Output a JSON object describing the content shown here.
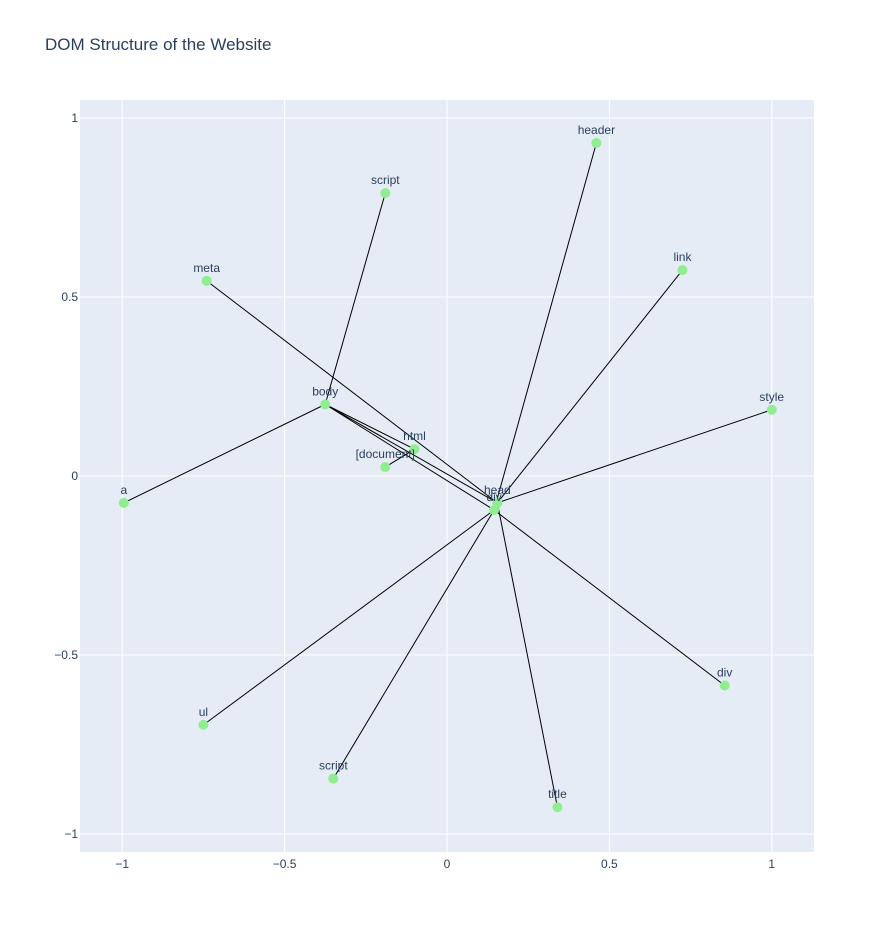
{
  "chart_data": {
    "type": "scatter",
    "title": "DOM Structure of the Website",
    "xlabel": "",
    "ylabel": "",
    "xlim": [
      -1.13,
      1.13
    ],
    "ylim": [
      -1.05,
      1.05
    ],
    "grid": true,
    "x_ticks": [
      {
        "value": -1,
        "label": "−1"
      },
      {
        "value": -0.5,
        "label": "−0.5"
      },
      {
        "value": 0,
        "label": "0"
      },
      {
        "value": 0.5,
        "label": "0.5"
      },
      {
        "value": 1,
        "label": "1"
      }
    ],
    "y_ticks": [
      {
        "value": 1,
        "label": "1"
      },
      {
        "value": 0.5,
        "label": "0.5"
      },
      {
        "value": 0,
        "label": "0"
      },
      {
        "value": -0.5,
        "label": "−0.5"
      },
      {
        "value": -1,
        "label": "−1"
      }
    ],
    "colors": {
      "plot_bg": "#e5ecf6",
      "grid": "#ffffff",
      "node": "#90ee90",
      "edge": "#000000",
      "text": "#2a3f5f"
    },
    "nodes": [
      {
        "id": "document",
        "label": "[document]",
        "x": -0.19,
        "y": 0.025
      },
      {
        "id": "html",
        "label": "html",
        "x": -0.1,
        "y": 0.075
      },
      {
        "id": "head",
        "label": "head",
        "x": 0.155,
        "y": -0.075
      },
      {
        "id": "div_center",
        "label": "div",
        "x": 0.145,
        "y": -0.095
      },
      {
        "id": "body",
        "label": "body",
        "x": -0.375,
        "y": 0.2
      },
      {
        "id": "script_top",
        "label": "script",
        "x": -0.19,
        "y": 0.79
      },
      {
        "id": "header",
        "label": "header",
        "x": 0.46,
        "y": 0.93
      },
      {
        "id": "meta",
        "label": "meta",
        "x": -0.74,
        "y": 0.545
      },
      {
        "id": "link",
        "label": "link",
        "x": 0.725,
        "y": 0.575
      },
      {
        "id": "style",
        "label": "style",
        "x": 1.0,
        "y": 0.185
      },
      {
        "id": "a",
        "label": "a",
        "x": -0.995,
        "y": -0.075
      },
      {
        "id": "div_right",
        "label": "div",
        "x": 0.855,
        "y": -0.585
      },
      {
        "id": "ul",
        "label": "ul",
        "x": -0.75,
        "y": -0.695
      },
      {
        "id": "script_bottom",
        "label": "script",
        "x": -0.35,
        "y": -0.845
      },
      {
        "id": "title",
        "label": "title",
        "x": 0.34,
        "y": -0.925
      }
    ],
    "edges": [
      [
        "document",
        "html"
      ],
      [
        "html",
        "body"
      ],
      [
        "body",
        "head"
      ],
      [
        "body",
        "div_center"
      ],
      [
        "body",
        "script_top"
      ],
      [
        "body",
        "a"
      ],
      [
        "head",
        "meta"
      ],
      [
        "head",
        "link"
      ],
      [
        "head",
        "style"
      ],
      [
        "head",
        "title"
      ],
      [
        "div_center",
        "header"
      ],
      [
        "div_center",
        "div_right"
      ],
      [
        "div_center",
        "ul"
      ],
      [
        "div_center",
        "script_bottom"
      ]
    ]
  }
}
